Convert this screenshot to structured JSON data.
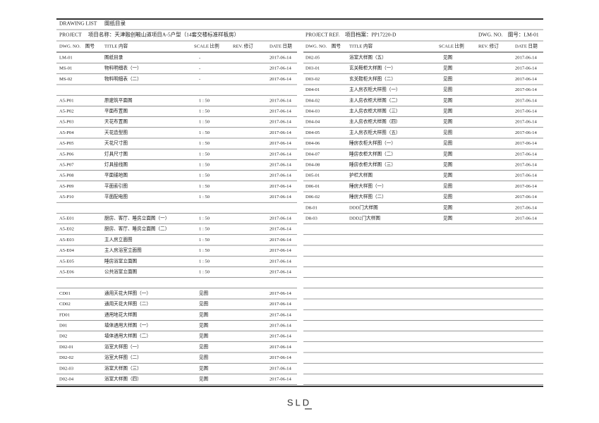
{
  "header": {
    "title_en": "DRAWING LIST",
    "title_cn": "图纸目录",
    "project": "PROJECT　 项目名称：天津融创鞍山道项目A-5户型（14套交楼标准样板房）",
    "project_ref": "PROJECT REF.　项目档案：PP17220-D",
    "dwg_no": "DWG. NO.　图号：LM-01"
  },
  "columns": [
    "DWG. NO.　图号",
    "TITLE 内容",
    "SCALE 比例",
    "REV. 修订",
    "DATE 日期"
  ],
  "left": {
    "groups": [
      [
        [
          "LM-01",
          "图纸目录",
          "-",
          "2017-06-14"
        ],
        [
          "MS-01",
          "物料明细表（一）",
          "-",
          "2017-06-14"
        ],
        [
          "MS-02",
          "物料明细表（二）",
          "-",
          "2017-06-14"
        ]
      ],
      [
        [
          "A5-P01",
          "原建筑平面图",
          "1 : 50",
          "2017-06-14"
        ],
        [
          "A5-P02",
          "平面布置图",
          "1 : 50",
          "2017-06-14"
        ],
        [
          "A5-P03",
          "天花布置图",
          "1 : 50",
          "2017-06-14"
        ],
        [
          "A5-P04",
          "天花造型图",
          "1 : 50",
          "2017-06-14"
        ],
        [
          "A5-P05",
          "天花尺寸图",
          "1 : 50",
          "2017-06-14"
        ],
        [
          "A5-P06",
          "灯具尺寸图",
          "1 : 50",
          "2017-06-14"
        ],
        [
          "A5-P07",
          "灯具接线图",
          "1 : 50",
          "2017-06-14"
        ],
        [
          "A5-P08",
          "平面铺地图",
          "1 : 50",
          "2017-06-14"
        ],
        [
          "A5-P09",
          "平面索引图",
          "1 : 50",
          "2017-06-14"
        ],
        [
          "A5-P10",
          "平面配电图",
          "1 : 50",
          "2017-06-14"
        ]
      ],
      [
        [
          "A5-E01",
          "厨房、客厅、睡房立面图（一）",
          "1 : 50",
          "2017-06-14"
        ],
        [
          "A5-E02",
          "厨房、客厅、睡房立面图（二）",
          "1 : 50",
          "2017-06-14"
        ],
        [
          "A5-E03",
          "主人房立面图",
          "1 : 50",
          "2017-06-14"
        ],
        [
          "A5-E04",
          "主人房浴室立面图",
          "1 : 50",
          "2017-06-14"
        ],
        [
          "A5-E05",
          "睡房浴室立面图",
          "1 : 50",
          "2017-06-14"
        ],
        [
          "A5-E06",
          "公共浴室立面图",
          "1 : 50",
          "2017-06-14"
        ]
      ],
      [
        [
          "CD01",
          "通用天花大样图（一）",
          "见图",
          "2017-06-14"
        ],
        [
          "CD02",
          "通用天花大样图（二）",
          "见图",
          "2017-06-14"
        ],
        [
          "FD01",
          "通用地花大样图",
          "见图",
          "2017-06-14"
        ],
        [
          "D01",
          "墙体通用大样图（一）",
          "见图",
          "2017-06-14"
        ],
        [
          "D02",
          "墙体通用大样图（二）",
          "见图",
          "2017-06-14"
        ],
        [
          "D02-01",
          "浴室大样图（一）",
          "见图",
          "2017-06-14"
        ],
        [
          "D02-02",
          "浴室大样图（二）",
          "见图",
          "2017-06-14"
        ],
        [
          "D02-03",
          "浴室大样图（三）",
          "见图",
          "2017-06-14"
        ],
        [
          "D02-04",
          "浴室大样图（四）",
          "见图",
          "2017-06-14"
        ]
      ]
    ]
  },
  "right": {
    "groups": [
      [
        [
          "D02-05",
          "浴室大样图（五）",
          "见图",
          "2017-06-14"
        ],
        [
          "D03-01",
          "玄关鞋柜大样图（一）",
          "见图",
          "2017-06-14"
        ],
        [
          "D03-02",
          "玄关鞋柜大样图（二）",
          "见图",
          "2017-06-14"
        ],
        [
          "D04-01",
          "主人房衣柜大样图（一）",
          "见图",
          "2017-06-14"
        ],
        [
          "D04-02",
          "主人房衣柜大样图（二）",
          "见图",
          "2017-06-14"
        ],
        [
          "D04-03",
          "主人房衣柜大样图（三）",
          "见图",
          "2017-06-14"
        ],
        [
          "D04-04",
          "主人房衣柜大样图（四）",
          "见图",
          "2017-06-14"
        ],
        [
          "D04-05",
          "主人房衣柜大样图（五）",
          "见图",
          "2017-06-14"
        ],
        [
          "D04-06",
          "睡房衣柜大样图（一）",
          "见图",
          "2017-06-14"
        ],
        [
          "D04-07",
          "睡房衣柜大样图（二）",
          "见图",
          "2017-06-14"
        ],
        [
          "D04-08",
          "睡房衣柜大样图（三）",
          "见图",
          "2017-06-14"
        ],
        [
          "D05-01",
          "护栏大样图",
          "见图",
          "2017-06-14"
        ],
        [
          "D06-01",
          "睡房大样图（一）",
          "见图",
          "2017-06-14"
        ],
        [
          "D06-02",
          "睡房大样图（二）",
          "见图",
          "2017-06-14"
        ],
        [
          "D8-01",
          "DDD门大样图",
          "见图",
          "2017-06-14"
        ],
        [
          "D8-03",
          "DDD2门大样图",
          "见图",
          "2017-06-14"
        ]
      ]
    ]
  },
  "footer": {
    "logo": "SLD"
  }
}
